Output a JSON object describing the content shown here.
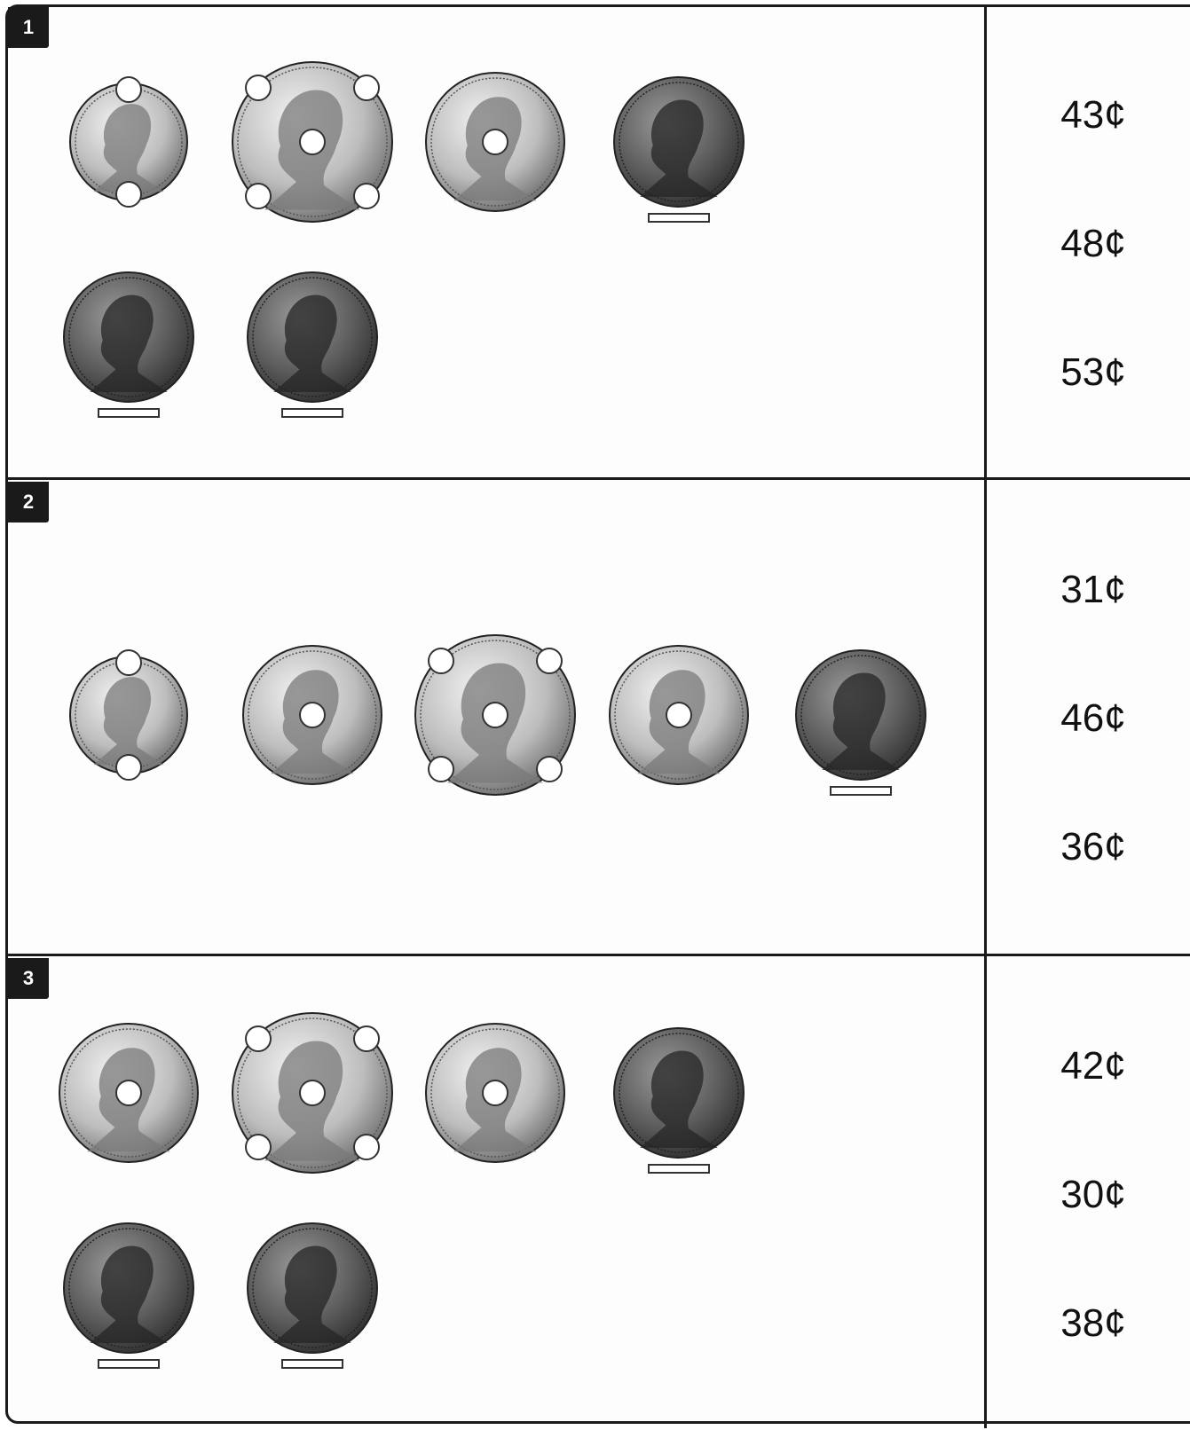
{
  "problems": [
    {
      "number": "1",
      "coin_rows": [
        [
          "dime",
          "quarter",
          "nickel",
          "penny"
        ],
        [
          "penny",
          "penny"
        ]
      ],
      "choices": [
        "43¢",
        "48¢",
        "53¢"
      ]
    },
    {
      "number": "2",
      "coin_rows": [
        [
          "dime",
          "nickel",
          "quarter",
          "nickel",
          "penny"
        ]
      ],
      "choices": [
        "31¢",
        "46¢",
        "36¢"
      ]
    },
    {
      "number": "3",
      "coin_rows": [
        [
          "nickel",
          "quarter",
          "nickel",
          "penny"
        ],
        [
          "penny",
          "penny"
        ]
      ],
      "choices": [
        "42¢",
        "30¢",
        "38¢"
      ]
    }
  ],
  "colors": {
    "ink": "#1a1a1a",
    "coin_light": "#d9d9d9",
    "coin_dark": "#6f6f6f",
    "penny": "#5a5a5a"
  }
}
